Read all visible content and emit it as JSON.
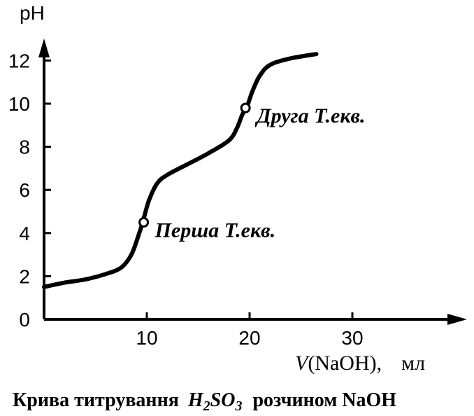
{
  "chart_data": {
    "type": "line",
    "ylabel": "pH",
    "xlabel_prefix": "V",
    "xlabel_rest": "(NaOH),",
    "xlabel_unit": "мл",
    "x_ticks": [
      "10",
      "20",
      "30"
    ],
    "y_ticks": [
      "0",
      "2",
      "4",
      "6",
      "8",
      "10",
      "12"
    ],
    "xlim": [
      0,
      38
    ],
    "ylim": [
      0,
      13
    ],
    "series": [
      {
        "x": [
          0,
          2,
          4,
          6,
          7.5,
          8.5,
          9.2,
          9.6,
          10.2,
          11,
          12,
          14,
          16,
          18,
          18.8,
          19.3,
          19.7,
          20.3,
          21,
          22,
          24,
          26.5
        ],
        "y": [
          1.5,
          1.7,
          1.85,
          2.1,
          2.4,
          3.0,
          3.9,
          4.5,
          5.5,
          6.3,
          6.7,
          7.2,
          7.7,
          8.3,
          8.9,
          9.5,
          9.8,
          10.6,
          11.3,
          11.8,
          12.1,
          12.3
        ]
      }
    ],
    "markers": [
      {
        "x": 9.7,
        "y": 4.5,
        "label": "Перша Т.екв."
      },
      {
        "x": 19.6,
        "y": 9.8,
        "label": "Друга Т.екв."
      }
    ]
  },
  "caption": {
    "prefix": "Крива титрування",
    "formula_h": "H",
    "formula_h_sub": "2",
    "formula_so": "SO",
    "formula_so_sub": "3",
    "suffix": "розчином NaOH"
  }
}
